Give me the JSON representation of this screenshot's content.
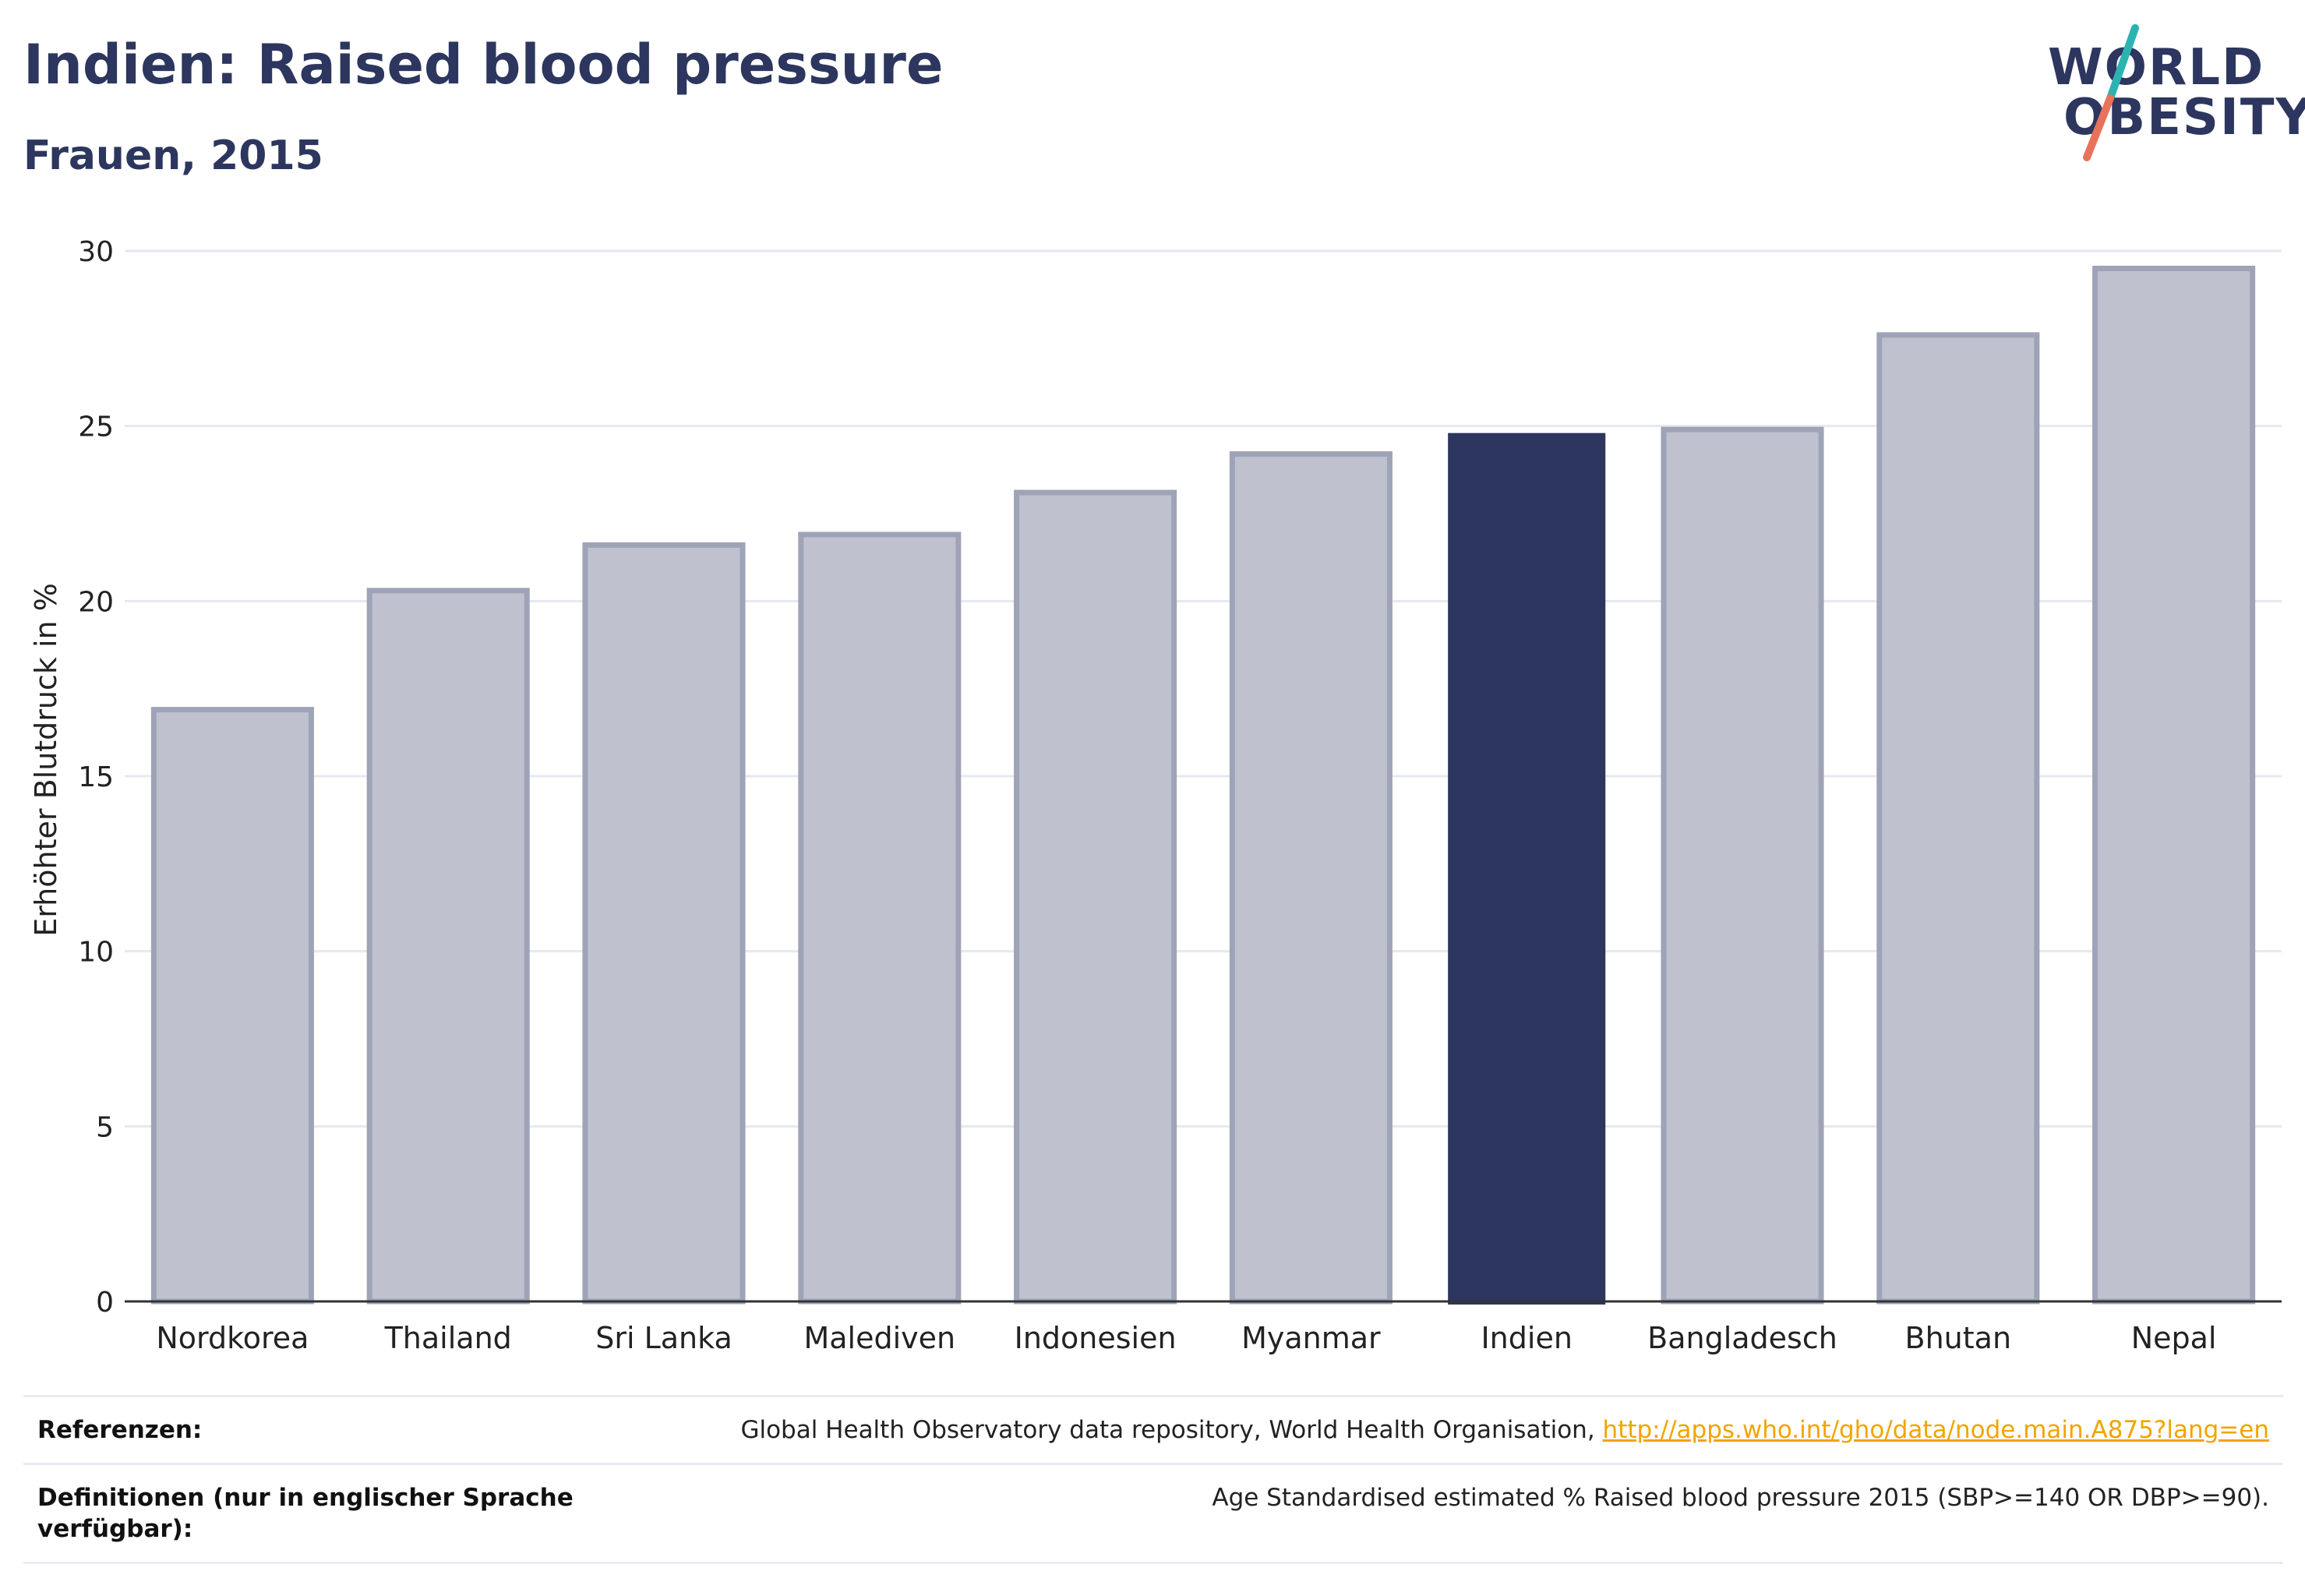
{
  "header": {
    "title": "Indien: Raised blood pressure",
    "subtitle": "Frauen, 2015"
  },
  "logo": {
    "line1": "WORLD",
    "line2": "OBESITY",
    "accent_teal": "#2bb3b1",
    "accent_coral": "#e8735a"
  },
  "chart_data": {
    "type": "bar",
    "title": "Indien: Raised blood pressure",
    "subtitle": "Frauen, 2015",
    "xlabel": "",
    "ylabel": "Erhöhter Blutdruck in %",
    "categories": [
      "Nordkorea",
      "Thailand",
      "Sri Lanka",
      "Malediven",
      "Indonesien",
      "Myanmar",
      "Indien",
      "Bangladesch",
      "Bhutan",
      "Nepal"
    ],
    "values": [
      16.9,
      20.3,
      21.6,
      21.9,
      23.1,
      24.2,
      24.8,
      24.9,
      27.6,
      29.5
    ],
    "highlight": "Indien",
    "ylim": [
      0,
      30
    ],
    "yticks": [
      0,
      5,
      10,
      15,
      20,
      25,
      30
    ],
    "grid": true,
    "colors": {
      "bar": "#bfc2ce",
      "bar_border": "#9ea3b8",
      "highlight": "#2c365e",
      "grid": "#e6e8ef",
      "axis": "#333333"
    }
  },
  "references": {
    "label": "Referenzen:",
    "source_text": "Global Health Observatory data repository, World Health Organisation, ",
    "source_link": "http://apps.who.int/gho/data/node.main.A875?lang=en"
  },
  "definitions": {
    "label": "Definitionen (nur in englischer Sprache verfügbar):",
    "text": "Age Standardised estimated % Raised blood pressure 2015 (SBP>=140 OR DBP>=90)."
  }
}
